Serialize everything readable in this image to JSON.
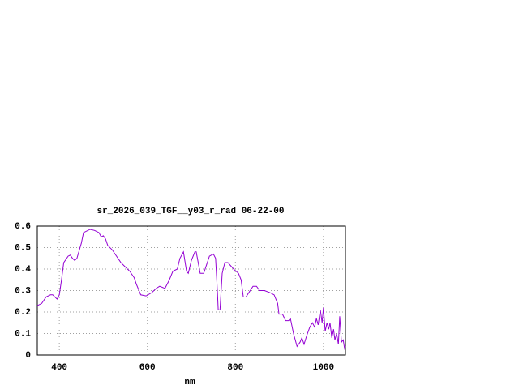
{
  "chart_data": {
    "type": "line",
    "title": "sr_2026_039_TGF__y03_r_rad 06-22-00",
    "xlabel": "nm",
    "x": [
      350,
      360,
      370,
      380,
      385,
      390,
      395,
      400,
      405,
      410,
      420,
      425,
      430,
      435,
      440,
      450,
      455,
      470,
      480,
      490,
      495,
      500,
      505,
      510,
      520,
      530,
      540,
      550,
      560,
      570,
      575,
      585,
      597,
      610,
      620,
      628,
      640,
      650,
      658,
      668,
      674,
      682,
      689,
      693,
      700,
      708,
      711,
      720,
      728,
      741,
      750,
      755,
      759,
      761,
      765,
      770,
      776,
      783,
      796,
      807,
      813,
      818,
      824,
      840,
      848,
      855,
      866,
      879,
      888,
      896,
      899,
      907,
      914,
      921,
      925,
      932,
      940,
      947,
      951,
      956,
      962,
      969,
      975,
      980,
      984,
      988,
      993,
      997,
      1000,
      1004,
      1008,
      1012,
      1015,
      1019,
      1023,
      1026,
      1030,
      1034,
      1037,
      1041,
      1045,
      1048,
      1050
    ],
    "series": [
      {
        "color": "#9400d3",
        "values": [
          0.23,
          0.24,
          0.27,
          0.28,
          0.28,
          0.27,
          0.26,
          0.28,
          0.35,
          0.43,
          0.46,
          0.465,
          0.45,
          0.44,
          0.45,
          0.52,
          0.57,
          0.585,
          0.58,
          0.57,
          0.55,
          0.555,
          0.54,
          0.51,
          0.49,
          0.46,
          0.43,
          0.41,
          0.39,
          0.36,
          0.33,
          0.28,
          0.275,
          0.29,
          0.31,
          0.32,
          0.31,
          0.35,
          0.39,
          0.4,
          0.45,
          0.48,
          0.39,
          0.38,
          0.44,
          0.48,
          0.48,
          0.38,
          0.38,
          0.46,
          0.47,
          0.45,
          0.3,
          0.21,
          0.21,
          0.38,
          0.43,
          0.43,
          0.4,
          0.38,
          0.35,
          0.27,
          0.27,
          0.32,
          0.32,
          0.3,
          0.3,
          0.29,
          0.28,
          0.24,
          0.19,
          0.19,
          0.16,
          0.16,
          0.17,
          0.1,
          0.04,
          0.06,
          0.08,
          0.05,
          0.09,
          0.13,
          0.15,
          0.13,
          0.17,
          0.14,
          0.21,
          0.15,
          0.22,
          0.11,
          0.15,
          0.12,
          0.15,
          0.08,
          0.12,
          0.07,
          0.1,
          0.05,
          0.18,
          0.06,
          0.07,
          0.03,
          0.04
        ]
      }
    ],
    "xlim": [
      350,
      1050
    ],
    "ylim": [
      0,
      0.6
    ],
    "xticks": [
      400,
      600,
      800,
      1000
    ],
    "yticks": [
      0,
      0.1,
      0.2,
      0.3,
      0.4,
      0.5,
      0.6
    ],
    "grid": true
  }
}
